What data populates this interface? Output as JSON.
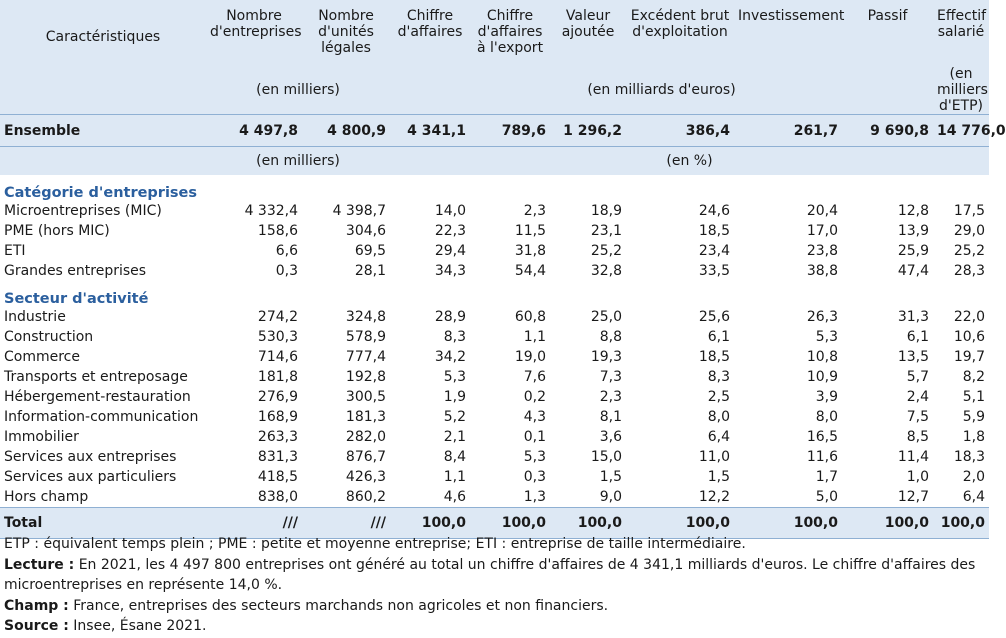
{
  "columns": [
    {
      "label": "Caractéristiques"
    },
    {
      "label": "Nombre\nd'entreprises"
    },
    {
      "label": "Nombre\nd'unités\nlégales"
    },
    {
      "label": "Chiffre\nd'affaires"
    },
    {
      "label": "Chiffre\nd'affaires\nà l'export"
    },
    {
      "label": "Valeur\najoutée"
    },
    {
      "label": "Excédent brut\nd'exploitation"
    },
    {
      "label": "Investissement"
    },
    {
      "label": "Passif"
    },
    {
      "label": "Effectif\nsalarié"
    }
  ],
  "units_row": {
    "thousands": "(en milliers)",
    "billions": "(en milliards d'euros)",
    "etp": "(en milliers\nd'ETP)"
  },
  "ensemble": {
    "label": "Ensemble",
    "values": [
      "4 497,8",
      "4 800,9",
      "4 341,1",
      "789,6",
      "1 296,2",
      "386,4",
      "261,7",
      "9 690,8",
      "14 776,0"
    ]
  },
  "units_row2": {
    "thousands": "(en milliers)",
    "percent": "(en %)"
  },
  "sections": [
    {
      "title": "Catégorie d'entreprises",
      "rows": [
        {
          "label": "Microentreprises (MIC)",
          "values": [
            "4 332,4",
            "4 398,7",
            "14,0",
            "2,3",
            "18,9",
            "24,6",
            "20,4",
            "12,8",
            "17,5"
          ]
        },
        {
          "label": "PME (hors MIC)",
          "values": [
            "158,6",
            "304,6",
            "22,3",
            "11,5",
            "23,1",
            "18,5",
            "17,0",
            "13,9",
            "29,0"
          ]
        },
        {
          "label": "ETI",
          "values": [
            "6,6",
            "69,5",
            "29,4",
            "31,8",
            "25,2",
            "23,4",
            "23,8",
            "25,9",
            "25,2"
          ]
        },
        {
          "label": "Grandes entreprises",
          "values": [
            "0,3",
            "28,1",
            "34,3",
            "54,4",
            "32,8",
            "33,5",
            "38,8",
            "47,4",
            "28,3"
          ]
        }
      ]
    },
    {
      "title": "Secteur d'activité",
      "rows": [
        {
          "label": "Industrie",
          "values": [
            "274,2",
            "324,8",
            "28,9",
            "60,8",
            "25,0",
            "25,6",
            "26,3",
            "31,3",
            "22,0"
          ]
        },
        {
          "label": "Construction",
          "values": [
            "530,3",
            "578,9",
            "8,3",
            "1,1",
            "8,8",
            "6,1",
            "5,3",
            "6,1",
            "10,6"
          ]
        },
        {
          "label": "Commerce",
          "values": [
            "714,6",
            "777,4",
            "34,2",
            "19,0",
            "19,3",
            "18,5",
            "10,8",
            "13,5",
            "19,7"
          ]
        },
        {
          "label": "Transports et entreposage",
          "values": [
            "181,8",
            "192,8",
            "5,3",
            "7,6",
            "7,3",
            "8,3",
            "10,9",
            "5,7",
            "8,2"
          ]
        },
        {
          "label": "Hébergement-restauration",
          "values": [
            "276,9",
            "300,5",
            "1,9",
            "0,2",
            "2,3",
            "2,5",
            "3,9",
            "2,4",
            "5,1"
          ]
        },
        {
          "label": "Information-communication",
          "values": [
            "168,9",
            "181,3",
            "5,2",
            "4,3",
            "8,1",
            "8,0",
            "8,0",
            "7,5",
            "5,9"
          ]
        },
        {
          "label": "Immobilier",
          "values": [
            "263,3",
            "282,0",
            "2,1",
            "0,1",
            "3,6",
            "6,4",
            "16,5",
            "8,5",
            "1,8"
          ]
        },
        {
          "label": "Services aux entreprises",
          "values": [
            "831,3",
            "876,7",
            "8,4",
            "5,3",
            "15,0",
            "11,0",
            "11,6",
            "11,4",
            "18,3"
          ]
        },
        {
          "label": "Services aux particuliers",
          "values": [
            "418,5",
            "426,3",
            "1,1",
            "0,3",
            "1,5",
            "1,5",
            "1,7",
            "1,0",
            "2,0"
          ]
        },
        {
          "label": "Hors champ",
          "values": [
            "838,0",
            "860,2",
            "4,6",
            "1,3",
            "9,0",
            "12,2",
            "5,0",
            "12,7",
            "6,4"
          ]
        }
      ]
    }
  ],
  "total": {
    "label": "Total",
    "values": [
      "///",
      "///",
      "100,0",
      "100,0",
      "100,0",
      "100,0",
      "100,0",
      "100,0",
      "100,0"
    ]
  },
  "notes": {
    "abbrev": "ETP : équivalent temps plein ; PME : petite et moyenne entreprise; ETI : entreprise de taille intermédiaire.",
    "lecture_label": "Lecture :",
    "lecture_text": " En 2021, les 4 497 800 entreprises ont généré au total un chiffre d'affaires de 4 341,1 milliards d'euros. Le chiffre d'affaires des microentreprises en représente 14,0 %.",
    "champ_label": "Champ :",
    "champ_text": " France, entreprises des secteurs marchands non agricoles et non financiers.",
    "source_label": "Source :",
    "source_text": " Insee, Ésane 2021."
  },
  "colors": {
    "header_bg": "#dde8f4",
    "section_title": "#2b5f9e",
    "rule": "#8fb0d3"
  }
}
